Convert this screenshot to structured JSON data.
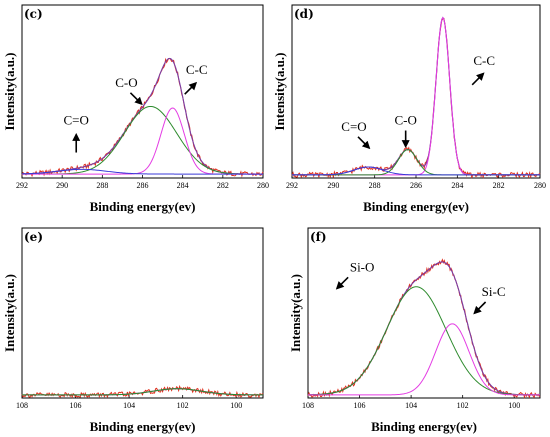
{
  "chart_data": [
    {
      "type": "line",
      "panel_label": "(c)",
      "xlabel": "Binding energy(ev)",
      "ylabel": "Intensity(a.u.)",
      "xlim": [
        292,
        280
      ],
      "x_ticks": [
        "292",
        "290",
        "288",
        "286",
        "284",
        "282",
        "280"
      ],
      "ylim": [
        0,
        1.1
      ],
      "annotations": [
        {
          "text": "C=O",
          "x": 289.3,
          "y": 0.34,
          "arrow": "up"
        },
        {
          "text": "C-O",
          "x": 286.8,
          "y": 0.58,
          "arrow": "down-right"
        },
        {
          "text": "C-C",
          "x": 283.3,
          "y": 0.66,
          "arrow": "up-right"
        }
      ],
      "series": [
        {
          "color": "#e0301e",
          "style": "raw",
          "peaks": [
            [
              285.6,
              0.43,
              1.3
            ],
            [
              284.5,
              0.42,
              0.58
            ],
            [
              289.0,
              0.03,
              1.2
            ]
          ],
          "baseline": 0.025
        },
        {
          "color": "#7a3fa5",
          "style": "envelope",
          "peaks": [
            [
              285.6,
              0.43,
              1.3
            ],
            [
              284.5,
              0.42,
              0.58
            ],
            [
              289.0,
              0.03,
              1.2
            ]
          ],
          "baseline": 0.025
        },
        {
          "color": "#2e8b2e",
          "peaks": [
            [
              285.6,
              0.43,
              1.3
            ]
          ],
          "baseline": 0.025
        },
        {
          "color": "#e43de4",
          "peaks": [
            [
              284.5,
              0.42,
              0.58
            ]
          ],
          "baseline": 0.025
        },
        {
          "color": "#3a3ad8",
          "peaks": [
            [
              289.0,
              0.03,
              1.2
            ]
          ],
          "baseline": 0.025
        }
      ]
    },
    {
      "type": "line",
      "panel_label": "(d)",
      "xlabel": "Binding energy(ev)",
      "ylabel": "Intensity(a.u.)",
      "xlim": [
        292,
        280
      ],
      "x_ticks": [
        "292",
        "290",
        "288",
        "286",
        "284",
        "282",
        "280"
      ],
      "ylim": [
        0,
        1.1
      ],
      "annotations": [
        {
          "text": "C=O",
          "x": 289.0,
          "y": 0.3,
          "arrow": "down-right"
        },
        {
          "text": "C-O",
          "x": 286.5,
          "y": 0.34,
          "arrow": "down"
        },
        {
          "text": "C-C",
          "x": 282.7,
          "y": 0.72,
          "arrow": "up-right"
        }
      ],
      "series": [
        {
          "color": "#e0301e",
          "style": "raw",
          "peaks": [
            [
              284.7,
              1.0,
              0.33
            ],
            [
              286.4,
              0.16,
              0.45
            ],
            [
              288.3,
              0.05,
              0.7
            ]
          ],
          "baseline": 0.02
        },
        {
          "color": "#7a3fa5",
          "style": "envelope",
          "peaks": [
            [
              284.7,
              1.0,
              0.33
            ],
            [
              286.4,
              0.16,
              0.45
            ],
            [
              288.3,
              0.05,
              0.7
            ]
          ],
          "baseline": 0.02
        },
        {
          "color": "#e43de4",
          "peaks": [
            [
              284.7,
              1.0,
              0.33
            ]
          ],
          "baseline": 0.02
        },
        {
          "color": "#2e8b2e",
          "peaks": [
            [
              286.4,
              0.16,
              0.45
            ]
          ],
          "baseline": 0.02
        },
        {
          "color": "#3a3ad8",
          "peaks": [
            [
              288.3,
              0.05,
              0.7
            ]
          ],
          "baseline": 0.02
        }
      ]
    },
    {
      "type": "line",
      "panel_label": "(e)",
      "xlabel": "Binding energy(ev)",
      "ylabel": "Intensity(a.u.)",
      "xlim": [
        108,
        99
      ],
      "x_ticks": [
        "108",
        "106",
        "104",
        "102",
        "100"
      ],
      "ylim": [
        0,
        1.1
      ],
      "annotations": [],
      "series": [
        {
          "color": "#e0301e",
          "style": "raw",
          "peaks": [
            [
              102.2,
              0.04,
              0.9
            ]
          ],
          "baseline": 0.02
        },
        {
          "color": "#7a3fa5",
          "style": "envelope",
          "peaks": [
            [
              102.2,
              0.04,
              0.9
            ]
          ],
          "baseline": 0.02
        },
        {
          "color": "#2e8b2e",
          "peaks": [
            [
              102.2,
              0.04,
              0.9
            ]
          ],
          "baseline": 0.02
        }
      ]
    },
    {
      "type": "line",
      "panel_label": "(f)",
      "xlabel": "Binding energy(ev)",
      "ylabel": "Intensity(a.u.)",
      "xlim": [
        108,
        99
      ],
      "x_ticks": [
        "108",
        "106",
        "104",
        "102",
        "100"
      ],
      "ylim": [
        0,
        1.1
      ],
      "annotations": [
        {
          "text": "Si-O",
          "x": 105.9,
          "y": 0.82,
          "arrow": "down-left"
        },
        {
          "text": "Si-C",
          "x": 100.8,
          "y": 0.66,
          "arrow": "down-left"
        }
      ],
      "series": [
        {
          "color": "#e0301e",
          "style": "raw",
          "peaks": [
            [
              103.8,
              0.7,
              1.15
            ],
            [
              102.4,
              0.46,
              0.65
            ]
          ],
          "baseline": 0.02
        },
        {
          "color": "#7a3fa5",
          "style": "envelope",
          "peaks": [
            [
              103.8,
              0.7,
              1.15
            ],
            [
              102.4,
              0.46,
              0.65
            ]
          ],
          "baseline": 0.02
        },
        {
          "color": "#2e8b2e",
          "peaks": [
            [
              103.8,
              0.7,
              1.15
            ]
          ],
          "baseline": 0.02
        },
        {
          "color": "#e43de4",
          "peaks": [
            [
              102.4,
              0.46,
              0.65
            ]
          ],
          "baseline": 0.02
        }
      ]
    }
  ]
}
